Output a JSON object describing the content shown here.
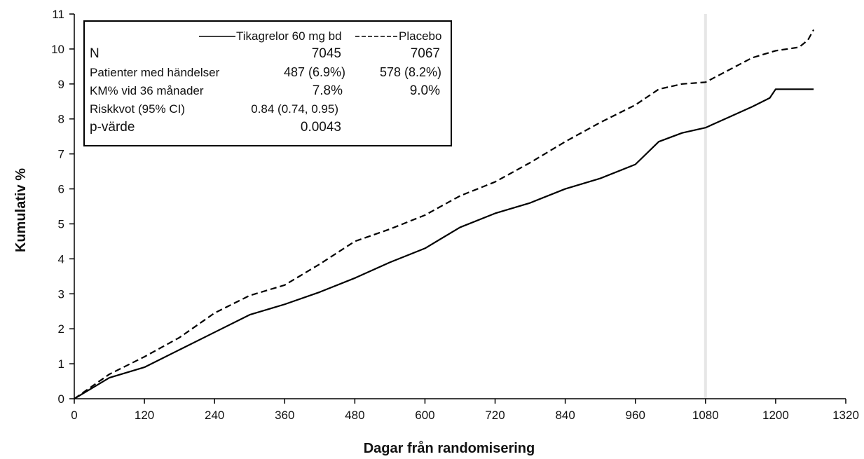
{
  "chart_data": {
    "type": "line",
    "xlabel": "Dagar från randomisering",
    "ylabel": "Kumulativ %",
    "xlim": [
      0,
      1320
    ],
    "ylim": [
      0,
      11
    ],
    "xticks": [
      0,
      120,
      240,
      360,
      480,
      600,
      720,
      840,
      960,
      1080,
      1200,
      1320
    ],
    "yticks": [
      0,
      1,
      2,
      3,
      4,
      5,
      6,
      7,
      8,
      9,
      10,
      11
    ],
    "grid": false,
    "reference_line_x": 1080,
    "series": [
      {
        "name": "Tikagrelor 60 mg bd",
        "style": "solid",
        "points": [
          [
            0,
            0
          ],
          [
            30,
            0.3
          ],
          [
            60,
            0.6
          ],
          [
            120,
            0.9
          ],
          [
            180,
            1.4
          ],
          [
            240,
            1.9
          ],
          [
            300,
            2.4
          ],
          [
            360,
            2.7
          ],
          [
            420,
            3.05
          ],
          [
            480,
            3.45
          ],
          [
            540,
            3.9
          ],
          [
            600,
            4.3
          ],
          [
            660,
            4.9
          ],
          [
            720,
            5.3
          ],
          [
            780,
            5.6
          ],
          [
            840,
            6.0
          ],
          [
            900,
            6.3
          ],
          [
            960,
            6.7
          ],
          [
            1000,
            7.35
          ],
          [
            1040,
            7.6
          ],
          [
            1080,
            7.75
          ],
          [
            1120,
            8.05
          ],
          [
            1160,
            8.35
          ],
          [
            1190,
            8.6
          ],
          [
            1200,
            8.85
          ],
          [
            1265,
            8.85
          ]
        ]
      },
      {
        "name": "Placebo",
        "style": "dashed",
        "points": [
          [
            0,
            0
          ],
          [
            30,
            0.35
          ],
          [
            60,
            0.7
          ],
          [
            120,
            1.2
          ],
          [
            180,
            1.75
          ],
          [
            240,
            2.45
          ],
          [
            300,
            2.95
          ],
          [
            360,
            3.25
          ],
          [
            420,
            3.85
          ],
          [
            480,
            4.5
          ],
          [
            540,
            4.85
          ],
          [
            600,
            5.25
          ],
          [
            660,
            5.8
          ],
          [
            720,
            6.2
          ],
          [
            780,
            6.75
          ],
          [
            840,
            7.35
          ],
          [
            900,
            7.9
          ],
          [
            960,
            8.4
          ],
          [
            1000,
            8.85
          ],
          [
            1040,
            9.0
          ],
          [
            1080,
            9.05
          ],
          [
            1120,
            9.4
          ],
          [
            1160,
            9.75
          ],
          [
            1200,
            9.95
          ],
          [
            1240,
            10.05
          ],
          [
            1255,
            10.25
          ],
          [
            1265,
            10.55
          ]
        ]
      }
    ],
    "legend": {
      "placement": "top-left",
      "header": [
        "Tikagrelor 60 mg bd",
        "Placebo"
      ],
      "rows": [
        {
          "label": "N",
          "values": [
            "7045",
            "7067"
          ]
        },
        {
          "label": "Patienter med händelser",
          "values": [
            "487 (6.9%)",
            "578 (8.2%)"
          ]
        },
        {
          "label": "KM% vid 36 månader",
          "values": [
            "7.8%",
            "9.0%"
          ]
        },
        {
          "label": "Riskkvot (95% CI)",
          "values": [
            "0.84 (0.74, 0.95)",
            ""
          ]
        },
        {
          "label": "p-värde",
          "values": [
            "0.0043",
            ""
          ]
        }
      ]
    },
    "colors": {
      "line": "#000000",
      "reference": "#e6e6e6"
    }
  }
}
